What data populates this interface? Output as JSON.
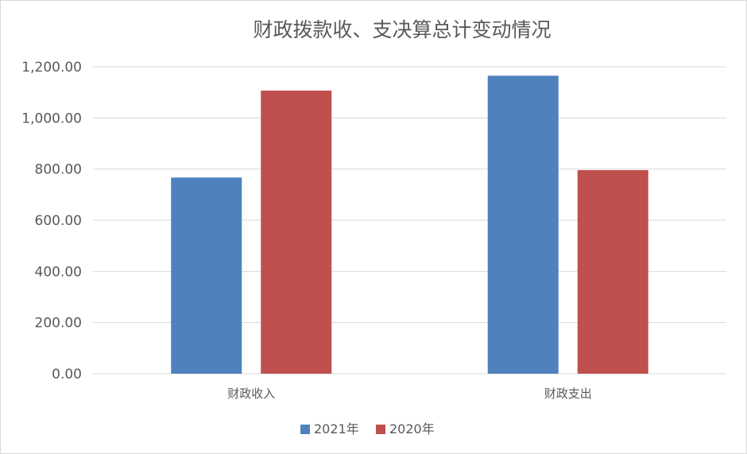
{
  "chart_data": {
    "type": "bar",
    "title": "财政拨款收、支决算总计变动情况",
    "xlabel": "",
    "ylabel": "",
    "categories": [
      "财政收入",
      "财政支出"
    ],
    "series": [
      {
        "name": "2021年",
        "values": [
          767,
          1165
        ],
        "color": "#4f81bd"
      },
      {
        "name": "2020年",
        "values": [
          1107,
          796
        ],
        "color": "#c0504d"
      }
    ],
    "ylim": [
      0,
      1200
    ],
    "yticks": [
      "0.00",
      "200.00",
      "400.00",
      "600.00",
      "800.00",
      "1,000.00",
      "1,200.00"
    ],
    "grid": true,
    "legend_position": "bottom"
  }
}
